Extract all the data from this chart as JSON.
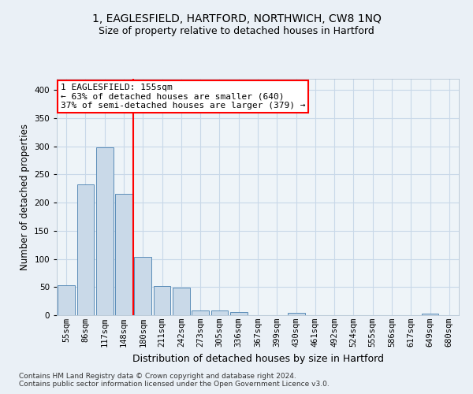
{
  "title": "1, EAGLESFIELD, HARTFORD, NORTHWICH, CW8 1NQ",
  "subtitle": "Size of property relative to detached houses in Hartford",
  "xlabel": "Distribution of detached houses by size in Hartford",
  "ylabel": "Number of detached properties",
  "categories": [
    "55sqm",
    "86sqm",
    "117sqm",
    "148sqm",
    "180sqm",
    "211sqm",
    "242sqm",
    "273sqm",
    "305sqm",
    "336sqm",
    "367sqm",
    "399sqm",
    "430sqm",
    "461sqm",
    "492sqm",
    "524sqm",
    "555sqm",
    "586sqm",
    "617sqm",
    "649sqm",
    "680sqm"
  ],
  "bar_values": [
    53,
    233,
    298,
    216,
    103,
    52,
    49,
    9,
    9,
    6,
    0,
    0,
    4,
    0,
    0,
    0,
    0,
    0,
    0,
    3,
    0
  ],
  "bar_color": "#c9d9e8",
  "bar_edge_color": "#5b8db8",
  "vline_index": 3,
  "vline_color": "red",
  "annotation_line1": "1 EAGLESFIELD: 155sqm",
  "annotation_line2": "← 63% of detached houses are smaller (640)",
  "annotation_line3": "37% of semi-detached houses are larger (379) →",
  "ylim": [
    0,
    420
  ],
  "yticks": [
    0,
    50,
    100,
    150,
    200,
    250,
    300,
    350,
    400
  ],
  "footer_text": "Contains HM Land Registry data © Crown copyright and database right 2024.\nContains public sector information licensed under the Open Government Licence v3.0.",
  "bg_color": "#eaf0f6",
  "plot_bg_color": "#eef4f8",
  "grid_color": "#d0dce8",
  "title_fontsize": 10,
  "subtitle_fontsize": 9,
  "xlabel_fontsize": 9,
  "ylabel_fontsize": 8.5,
  "tick_fontsize": 7.5,
  "annotation_fontsize": 8,
  "footer_fontsize": 6.5
}
